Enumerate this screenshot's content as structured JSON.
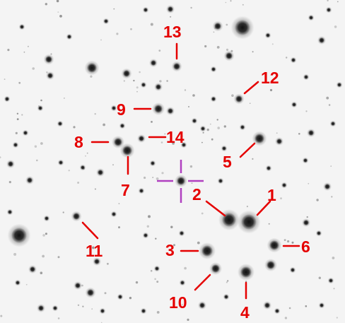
{
  "colors": {
    "background": "#f4f4f4",
    "star": "#141414",
    "label": "#e50000",
    "crosshair": "#b040c0"
  },
  "labels": {
    "s1": "1",
    "s2": "2",
    "s3": "3",
    "s4": "4",
    "s5": "5",
    "s6": "6",
    "s7": "7",
    "s8": "8",
    "s9": "9",
    "s10": "10",
    "s11": "11",
    "s12": "12",
    "s13": "13",
    "s14": "14"
  }
}
